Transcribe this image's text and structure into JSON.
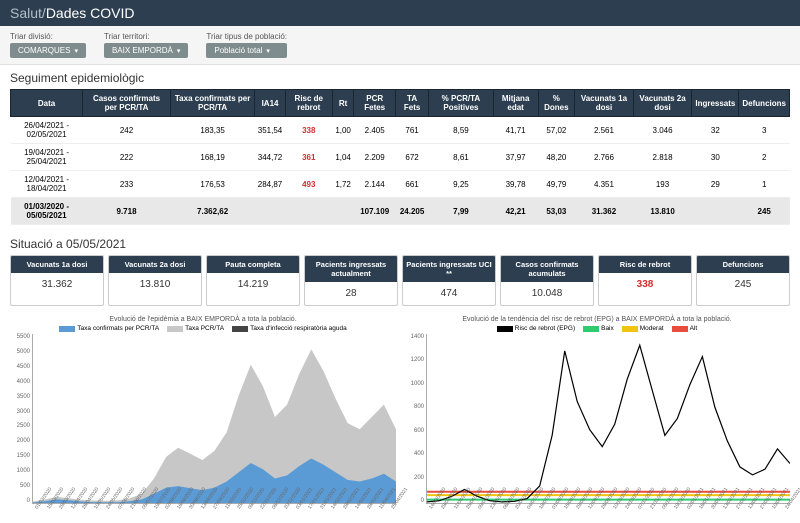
{
  "header": {
    "brand_light": "Salut/",
    "brand_bold": "Dades COVID"
  },
  "filters": {
    "divisio": {
      "label": "Triar divisió:",
      "value": "COMARQUES"
    },
    "territori": {
      "label": "Triar territori:",
      "value": "BAIX EMPORDÀ"
    },
    "poblacio": {
      "label": "Triar tipus de població:",
      "value": "Població total"
    }
  },
  "epi": {
    "title": "Seguiment epidemiològic",
    "columns": [
      "Data",
      "Casos confirmats per PCR/TA",
      "Taxa confirmats per PCR/TA",
      "IA14",
      "Risc de rebrot",
      "Rt",
      "PCR Fetes",
      "TA Fets",
      "% PCR/TA Positives",
      "Mitjana edat",
      "% Dones",
      "Vacunats 1a dosi",
      "Vacunats 2a dosi",
      "Ingressats",
      "Defuncions"
    ],
    "rows": [
      {
        "data": "26/04/2021 - 02/05/2021",
        "casos": "242",
        "taxa": "183,35",
        "ia14": "351,54",
        "risc": "338",
        "rt": "1,00",
        "pcr": "2.405",
        "ta": "761",
        "pct": "8,59",
        "edat": "41,71",
        "dones": "57,02",
        "v1": "2.561",
        "v2": "3.046",
        "ing": "32",
        "def": "3"
      },
      {
        "data": "19/04/2021 - 25/04/2021",
        "casos": "222",
        "taxa": "168,19",
        "ia14": "344,72",
        "risc": "361",
        "rt": "1,04",
        "pcr": "2.209",
        "ta": "672",
        "pct": "8,61",
        "edat": "37,97",
        "dones": "48,20",
        "v1": "2.766",
        "v2": "2.818",
        "ing": "30",
        "def": "2"
      },
      {
        "data": "12/04/2021 - 18/04/2021",
        "casos": "233",
        "taxa": "176,53",
        "ia14": "284,87",
        "risc": "493",
        "rt": "1,72",
        "pcr": "2.144",
        "ta": "661",
        "pct": "9,25",
        "edat": "39,78",
        "dones": "49,79",
        "v1": "4.351",
        "v2": "193",
        "ing": "29",
        "def": "1"
      }
    ],
    "total": {
      "data": "01/03/2020 - 05/05/2021",
      "casos": "9.718",
      "taxa": "7.362,62",
      "ia14": "",
      "risc": "",
      "rt": "",
      "pcr": "107.109",
      "ta": "24.205",
      "pct": "7,99",
      "edat": "42,21",
      "dones": "53,03",
      "v1": "31.362",
      "v2": "13.810",
      "ing": "",
      "def": "245"
    }
  },
  "situacio": {
    "title": "Situació a 05/05/2021",
    "cards": [
      {
        "label": "Vacunats 1a dosi",
        "value": "31.362",
        "red": false
      },
      {
        "label": "Vacunats 2a dosi",
        "value": "13.810",
        "red": false
      },
      {
        "label": "Pauta completa",
        "value": "14.219",
        "red": false
      },
      {
        "label": "Pacients ingressats actualment",
        "value": "28",
        "red": false
      },
      {
        "label": "Pacients ingressats UCI **",
        "value": "474",
        "red": false
      },
      {
        "label": "Casos confirmats acumulats",
        "value": "10.048",
        "red": false
      },
      {
        "label": "Risc de rebrot",
        "value": "338",
        "red": true
      },
      {
        "label": "Defuncions",
        "value": "245",
        "red": false
      }
    ]
  },
  "chart1": {
    "title": "Evolució de l'epidèmia a BAIX EMPORDÀ a tota la població.",
    "legend": [
      {
        "label": "Taxa confirmats per PCR/TA",
        "color": "#5b9bd5"
      },
      {
        "label": "Taxa PCR/TA",
        "color": "#c7c7c7"
      },
      {
        "label": "Taxa d'infecció respiratòria aguda",
        "color": "#444444"
      }
    ],
    "ymax": 5500,
    "ystep": 500,
    "yticks": [
      "0",
      "500",
      "1000",
      "1500",
      "2000",
      "2500",
      "3000",
      "3500",
      "4000",
      "4500",
      "5000",
      "5500"
    ],
    "xlabels": [
      "01/03/2020",
      "15/03/2020",
      "29/03/2020",
      "12/04/2020",
      "26/04/2020",
      "10/05/2020",
      "24/05/2020",
      "07/06/2020",
      "21/06/2020",
      "05/07/2020",
      "19/07/2020",
      "02/08/2020",
      "16/08/2020",
      "30/08/2020",
      "13/09/2020",
      "27/09/2020",
      "11/10/2020",
      "25/10/2020",
      "08/11/2020",
      "22/11/2020",
      "06/12/2020",
      "20/12/2020",
      "03/01/2021",
      "17/01/2021",
      "31/01/2021",
      "14/02/2021",
      "28/02/2021",
      "14/03/2021",
      "28/03/2021",
      "11/04/2021",
      "25/04/2021"
    ],
    "series_grey": [
      50,
      120,
      200,
      150,
      100,
      80,
      70,
      90,
      150,
      300,
      800,
      1500,
      1800,
      1600,
      1400,
      1700,
      2300,
      3500,
      4500,
      3800,
      2800,
      3200,
      4200,
      5000,
      4300,
      3400,
      2600,
      2400,
      2800,
      3200,
      2400
    ],
    "series_blue": [
      20,
      60,
      120,
      90,
      50,
      30,
      25,
      30,
      60,
      120,
      300,
      500,
      550,
      480,
      420,
      500,
      700,
      1000,
      1300,
      1100,
      800,
      900,
      1200,
      1450,
      1250,
      1000,
      750,
      700,
      800,
      950,
      700
    ],
    "colors": {
      "grey": "#c7c7c7",
      "blue": "#5b9bd5",
      "axis": "#aaaaaa"
    }
  },
  "chart2": {
    "title": "Evolució de la tendència del risc de rebrot (EPG) a BAIX EMPORDÀ a tota la població.",
    "legend": [
      {
        "label": "Risc de rebrot (EPG)",
        "color": "#000000"
      },
      {
        "label": "Baix",
        "color": "#2ecc71"
      },
      {
        "label": "Moderat",
        "color": "#f1c40f"
      },
      {
        "label": "Alt",
        "color": "#e74c3c"
      }
    ],
    "ymax": 1500,
    "ystep": 200,
    "yticks": [
      "0",
      "200",
      "400",
      "600",
      "800",
      "1000",
      "1200",
      "1400"
    ],
    "thresholds": {
      "baix": 30,
      "moderat": 70,
      "alt": 100
    },
    "xlabels": [
      "14/03/2020",
      "28/03/2020",
      "11/04/2020",
      "25/04/2020",
      "09/05/2020",
      "23/05/2020",
      "06/06/2020",
      "20/06/2020",
      "04/07/2020",
      "18/07/2020",
      "01/08/2020",
      "15/08/2020",
      "29/08/2020",
      "12/09/2020",
      "26/09/2020",
      "10/10/2020",
      "24/10/2020",
      "07/11/2020",
      "21/11/2020",
      "05/12/2020",
      "19/12/2020",
      "02/01/2021",
      "16/01/2021",
      "30/01/2021",
      "13/02/2021",
      "27/02/2021",
      "13/03/2021",
      "27/03/2021",
      "10/04/2021",
      "24/04/2021"
    ],
    "series": [
      10,
      20,
      60,
      120,
      60,
      20,
      10,
      15,
      40,
      150,
      600,
      1350,
      900,
      650,
      500,
      700,
      1100,
      1400,
      1000,
      600,
      750,
      1050,
      1300,
      850,
      550,
      320,
      250,
      300,
      480,
      350
    ],
    "colors": {
      "line": "#000000",
      "baix": "#2ecc71",
      "moderat": "#f1c40f",
      "alt": "#e74c3c",
      "axis": "#aaaaaa"
    }
  }
}
